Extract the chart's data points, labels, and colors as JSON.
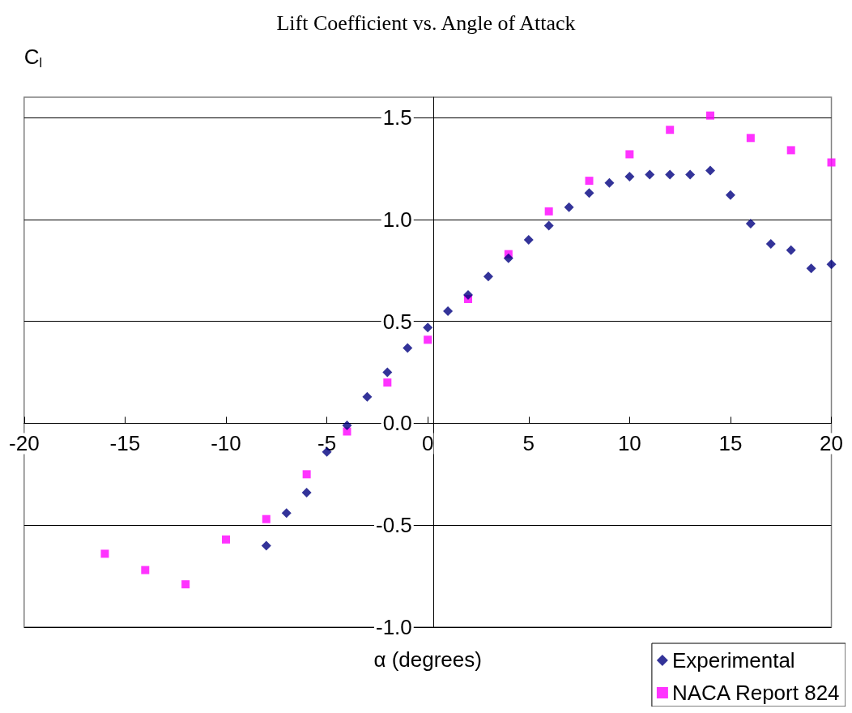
{
  "chart_data": {
    "type": "scatter",
    "title": "Lift Coefficient vs. Angle of Attack",
    "annotations": [
      "α (degrees)"
    ],
    "ylabel": "C$_{l}$",
    "series": [
      {
        "name": "Experimental",
        "color": "#000080",
        "marker": "diamond",
        "x": [
          -8,
          -7,
          -6,
          -5,
          -4,
          -3,
          -2,
          -1,
          0,
          1,
          2,
          3,
          4,
          5,
          6,
          7,
          8,
          9,
          10,
          11,
          12,
          13,
          14,
          15,
          16,
          17,
          18,
          19,
          20
        ],
        "values": [
          -0.6,
          -0.44,
          -0.34,
          -0.14,
          -0.01,
          0.13,
          0.25,
          0.37,
          0.47,
          0.55,
          0.63,
          0.72,
          0.81,
          0.9,
          0.97,
          1.06,
          1.13,
          1.18,
          1.21,
          1.22,
          1.22,
          1.22,
          1.24,
          1.12,
          0.98,
          0.88,
          0.85,
          0.76,
          0.78
        ]
      },
      {
        "name": "NACA Report 824",
        "color": "#ff00ff",
        "marker": "square",
        "x": [
          -16,
          -14,
          -12,
          -10,
          -8,
          -6,
          -4,
          -2,
          0,
          2,
          4,
          6,
          8,
          10,
          12,
          14,
          16,
          18,
          20
        ],
        "values": [
          -0.64,
          -0.72,
          -0.79,
          -0.57,
          -0.47,
          -0.25,
          -0.04,
          0.2,
          0.41,
          0.61,
          0.83,
          1.04,
          1.19,
          1.32,
          1.44,
          1.51,
          1.4,
          1.34,
          1.28
        ]
      }
    ],
    "xlim": [
      -20,
      20
    ],
    "xticks": [
      -20,
      -15,
      -10,
      -5,
      0,
      5,
      10,
      15,
      20
    ],
    "ylim": [
      -1,
      1.6
    ],
    "yticks": [
      {
        "value": -1,
        "label": "-1.0"
      },
      -0.5,
      {
        "value": 0,
        "label": "0.0"
      },
      0.5,
      {
        "value": 1,
        "label": "1.0"
      },
      1.5
    ],
    "grid": "y",
    "legend": "bottom right"
  }
}
